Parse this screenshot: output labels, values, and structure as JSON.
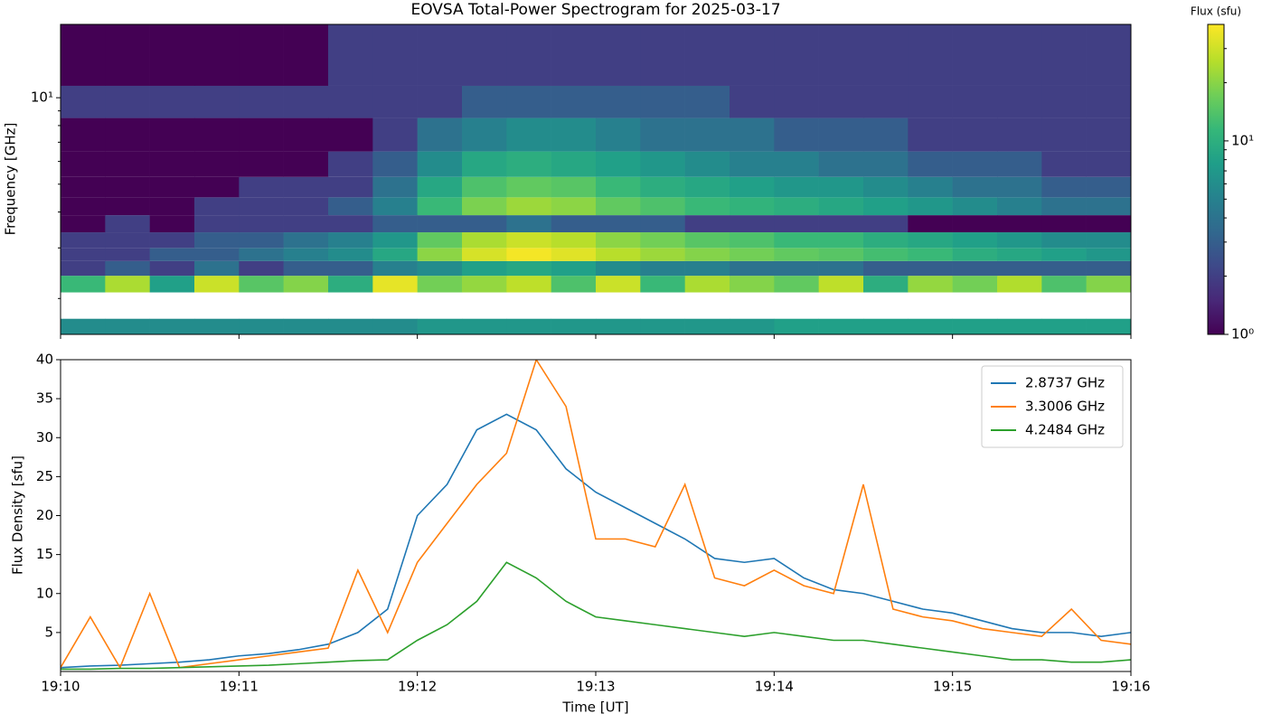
{
  "chart_data": [
    {
      "type": "heatmap",
      "title": "EOVSA Total-Power Spectrogram for 2025-03-17",
      "ylabel": "Frequency [GHz]",
      "log_y": true,
      "ylim": [
        1.5,
        18
      ],
      "yticks": [
        {
          "value": 10,
          "label": "10¹"
        }
      ],
      "xlim": [
        "19:10",
        "19:16"
      ],
      "time_bins": [
        "19:10:00",
        "19:10:15",
        "19:10:30",
        "19:10:45",
        "19:11:00",
        "19:11:15",
        "19:11:30",
        "19:11:45",
        "19:12:00",
        "19:12:15",
        "19:12:30",
        "19:12:45",
        "19:13:00",
        "19:13:15",
        "19:13:30",
        "19:13:45",
        "19:14:00",
        "19:14:15",
        "19:14:30",
        "19:14:45",
        "19:15:00",
        "19:15:15",
        "19:15:30",
        "19:15:45",
        "19:16:00"
      ],
      "freq_bins": [
        1.5,
        1.7,
        1.9,
        2.1,
        2.4,
        2.7,
        3.0,
        3.4,
        3.9,
        4.5,
        5.3,
        6.5,
        8.5,
        11,
        18
      ],
      "values": [
        [
          6,
          6,
          6,
          6,
          6,
          6,
          6,
          6,
          7,
          7,
          7,
          7,
          7,
          7,
          7,
          7,
          8,
          8,
          8,
          8,
          8,
          8,
          8,
          8
        ],
        [
          null,
          null,
          null,
          null,
          null,
          null,
          null,
          null,
          null,
          null,
          null,
          null,
          null,
          null,
          null,
          null,
          null,
          null,
          null,
          null,
          null,
          null,
          null,
          null
        ],
        [
          null,
          null,
          null,
          null,
          null,
          null,
          null,
          null,
          null,
          null,
          null,
          null,
          null,
          null,
          null,
          null,
          null,
          null,
          null,
          null,
          null,
          null,
          null,
          null
        ],
        [
          12,
          25,
          8,
          30,
          15,
          20,
          10,
          35,
          18,
          22,
          28,
          14,
          30,
          12,
          25,
          20,
          16,
          28,
          10,
          22,
          18,
          26,
          14,
          20
        ],
        [
          2,
          3,
          2,
          4,
          2,
          3,
          3,
          5,
          6,
          8,
          9,
          8,
          6,
          5,
          5,
          4,
          4,
          4,
          3,
          3,
          3,
          3,
          3,
          3
        ],
        [
          2,
          2,
          3,
          3,
          4,
          5,
          6,
          9,
          21,
          32,
          38,
          34,
          27,
          23,
          20,
          18,
          16,
          15,
          13,
          12,
          10,
          9,
          8,
          7
        ],
        [
          2,
          2,
          2,
          3,
          3,
          4,
          5,
          7,
          16,
          25,
          30,
          27,
          21,
          18,
          15,
          14,
          12,
          12,
          10,
          9,
          8,
          7,
          6,
          6
        ],
        [
          1,
          2,
          1,
          2,
          2,
          2,
          2,
          3,
          3,
          3,
          4,
          3,
          3,
          3,
          2,
          2,
          2,
          2,
          2,
          1,
          1,
          1,
          1,
          1
        ],
        [
          1,
          1,
          1,
          2,
          2,
          2,
          3,
          5,
          12,
          19,
          23,
          21,
          16,
          14,
          12,
          11,
          10,
          9,
          8,
          7,
          6,
          5,
          4,
          4
        ],
        [
          1,
          1,
          1,
          1,
          2,
          2,
          2,
          4,
          9,
          14,
          16,
          15,
          12,
          10,
          9,
          8,
          7,
          7,
          6,
          5,
          4,
          4,
          3,
          3
        ],
        [
          1,
          1,
          1,
          1,
          1,
          1,
          2,
          3,
          6,
          9,
          10,
          9,
          8,
          7,
          6,
          5,
          5,
          4,
          4,
          3,
          3,
          3,
          2,
          2
        ],
        [
          1,
          1,
          1,
          1,
          1,
          1,
          1,
          2,
          4,
          5,
          6,
          6,
          5,
          4,
          4,
          4,
          3,
          3,
          3,
          2,
          2,
          2,
          2,
          2
        ],
        [
          2,
          2,
          2,
          2,
          2,
          2,
          2,
          2,
          2,
          3,
          3,
          3,
          3,
          3,
          3,
          2,
          2,
          2,
          2,
          2,
          2,
          2,
          2,
          2
        ],
        [
          1,
          1,
          1,
          1,
          1,
          1,
          2,
          2,
          2,
          2,
          2,
          2,
          2,
          2,
          2,
          2,
          2,
          2,
          2,
          2,
          2,
          2,
          2,
          2
        ]
      ],
      "colorscale": "viridis",
      "colorbar_label": "Flux (sfu)",
      "clim": [
        1,
        40
      ],
      "cticks": [
        {
          "value": 1,
          "label": "10⁰"
        },
        {
          "value": 10,
          "label": "10¹"
        }
      ]
    },
    {
      "type": "line",
      "xlabel": "Time [UT]",
      "ylabel": "Flux Density [sfu]",
      "xlim": [
        "19:10",
        "19:16"
      ],
      "xticks": [
        "19:10",
        "19:11",
        "19:12",
        "19:13",
        "19:14",
        "19:15",
        "19:16"
      ],
      "ylim": [
        0,
        40
      ],
      "yticks": [
        5,
        10,
        15,
        20,
        25,
        30,
        35,
        40
      ],
      "legend": "upper right",
      "x": [
        "19:10:00",
        "19:10:10",
        "19:10:20",
        "19:10:30",
        "19:10:40",
        "19:10:50",
        "19:11:00",
        "19:11:10",
        "19:11:20",
        "19:11:30",
        "19:11:40",
        "19:11:50",
        "19:12:00",
        "19:12:10",
        "19:12:20",
        "19:12:30",
        "19:12:40",
        "19:12:50",
        "19:13:00",
        "19:13:10",
        "19:13:20",
        "19:13:30",
        "19:13:40",
        "19:13:50",
        "19:14:00",
        "19:14:10",
        "19:14:20",
        "19:14:30",
        "19:14:40",
        "19:14:50",
        "19:15:00",
        "19:15:10",
        "19:15:20",
        "19:15:30",
        "19:15:40",
        "19:15:50",
        "19:16:00"
      ],
      "series": [
        {
          "name": "2.8737 GHz",
          "color": "#1f77b4",
          "values": [
            0.5,
            0.7,
            0.8,
            1,
            1.2,
            1.5,
            2,
            2.3,
            2.8,
            3.5,
            5,
            8,
            20,
            24,
            31,
            33,
            31,
            26,
            23,
            21,
            19,
            17,
            14.5,
            14,
            14.5,
            12,
            10.5,
            10,
            9,
            8,
            7.5,
            6.5,
            5.5,
            5,
            5,
            4.5,
            5
          ]
        },
        {
          "name": "3.3006 GHz",
          "color": "#ff7f0e",
          "values": [
            0.5,
            7,
            0.5,
            10,
            0.5,
            1,
            1.5,
            2,
            2.5,
            3,
            13,
            5,
            14,
            19,
            24,
            28,
            40,
            34,
            17,
            17,
            16,
            24,
            12,
            11,
            13,
            11,
            10,
            24,
            8,
            7,
            6.5,
            5.5,
            5,
            4.5,
            8,
            4,
            3.5
          ]
        },
        {
          "name": "4.2484 GHz",
          "color": "#2ca02c",
          "values": [
            0.3,
            0.3,
            0.4,
            0.4,
            0.5,
            0.6,
            0.7,
            0.8,
            1,
            1.2,
            1.4,
            1.5,
            4,
            6,
            9,
            14,
            12,
            9,
            7,
            6.5,
            6,
            5.5,
            5,
            4.5,
            5,
            4.5,
            4,
            4,
            3.5,
            3,
            2.5,
            2,
            1.5,
            1.5,
            1.2,
            1.2,
            1.5
          ]
        }
      ]
    }
  ]
}
